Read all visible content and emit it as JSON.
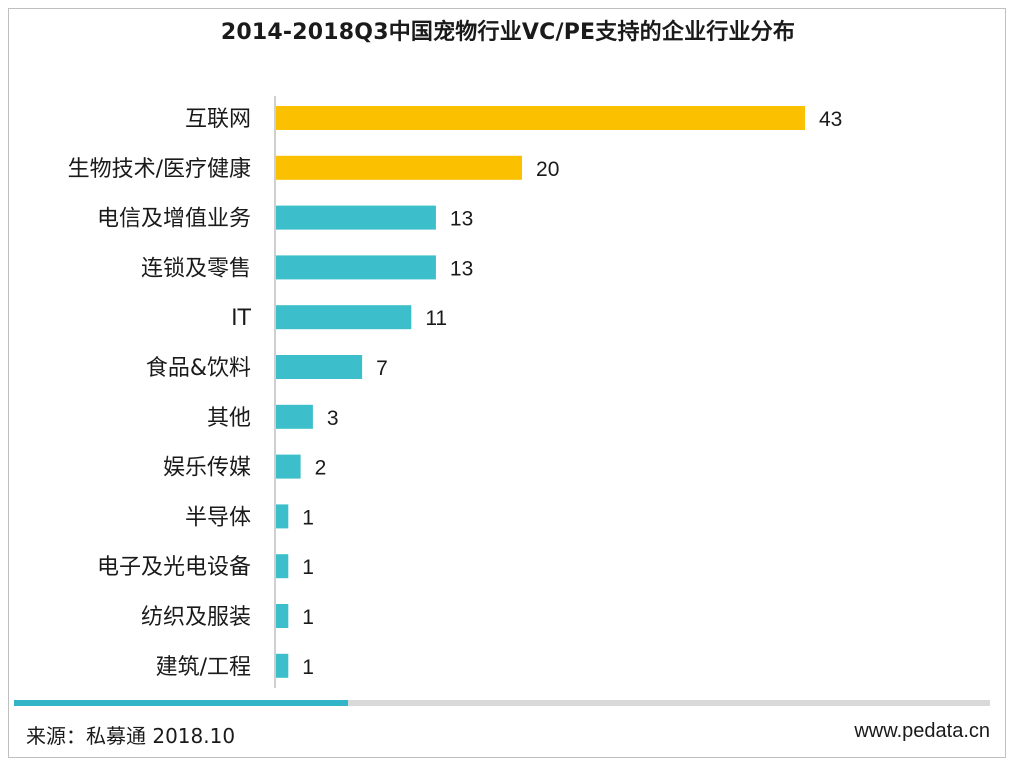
{
  "chart_data": {
    "type": "bar",
    "orientation": "horizontal",
    "title": "2014-2018Q3中国宠物行业VC/PE支持的企业行业分布",
    "categories": [
      "互联网",
      "生物技术/医疗健康",
      "电信及增值业务",
      "连锁及零售",
      "IT",
      "食品&饮料",
      "其他",
      "娱乐传媒",
      "半导体",
      "电子及光电设备",
      "纺织及服装",
      "建筑/工程"
    ],
    "values": [
      43,
      20,
      13,
      13,
      11,
      7,
      3,
      2,
      1,
      1,
      1,
      1
    ],
    "bar_colors": [
      "#fbc100",
      "#fbc100",
      "#3cbfcb",
      "#3cbfcb",
      "#3cbfcb",
      "#3cbfcb",
      "#3cbfcb",
      "#3cbfcb",
      "#3cbfcb",
      "#3cbfcb",
      "#3cbfcb",
      "#3cbfcb"
    ],
    "axis_line_color": "#bfbfbf",
    "xlim": [
      0,
      43
    ],
    "grid": false,
    "legend": "none"
  },
  "footer": {
    "source": "来源：私募通  2018.10",
    "website": "www.pedata.cn",
    "progress_fraction": 0.342,
    "progress_color": "#33b5c8",
    "track_color": "#d9d9d9"
  }
}
